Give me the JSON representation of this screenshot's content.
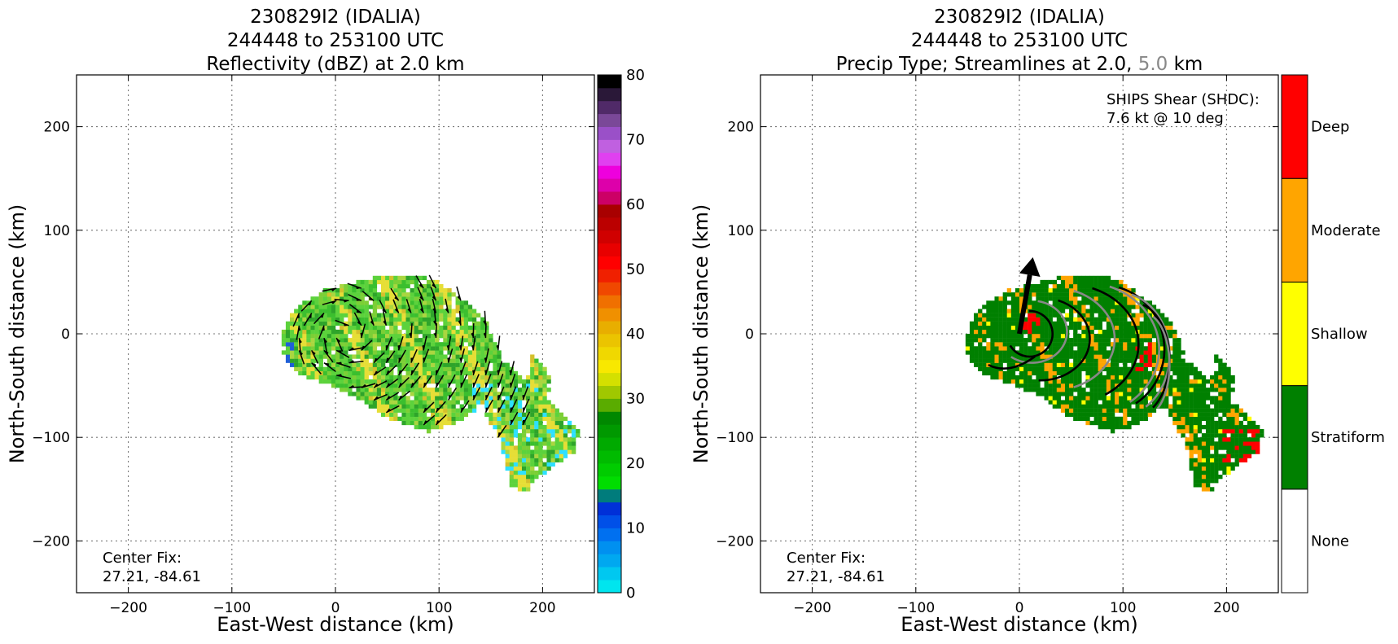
{
  "charts": [
    {
      "type": "heatmap",
      "title_lines": [
        "230829I2 (IDALIA)",
        "244448 to 253100 UTC",
        "Reflectivity (dBZ) at 2.0 km"
      ],
      "xlabel": "East-West distance (km)",
      "ylabel": "North-South distance (km)",
      "xlim": [
        -250,
        250
      ],
      "ylim": [
        -250,
        250
      ],
      "xticks": [
        "−200",
        "−100",
        "0",
        "100",
        "200"
      ],
      "yticks": [
        "−200",
        "−100",
        "0",
        "100",
        "200"
      ],
      "grid": true,
      "center_fix": {
        "label": "Center Fix:",
        "coords": "27.21, -84.61"
      },
      "colorbar": {
        "range": [
          0,
          80
        ],
        "tick_labels": [
          "0",
          "10",
          "20",
          "30",
          "40",
          "50",
          "60",
          "70",
          "80"
        ],
        "colors": [
          "#00e5ee",
          "#00c8f0",
          "#00a8f0",
          "#0090f0",
          "#0070f0",
          "#0050e8",
          "#0030d8",
          "#007c7c",
          "#00dd00",
          "#00cc00",
          "#00bb00",
          "#00aa00",
          "#009900",
          "#008800",
          "#5aac00",
          "#a0c800",
          "#d4e000",
          "#f8e800",
          "#f0d800",
          "#ebc400",
          "#e8ae00",
          "#f09000",
          "#f07000",
          "#f04800",
          "#f02000",
          "#ff0000",
          "#e80000",
          "#d00000",
          "#bb0000",
          "#a80000",
          "#cc0066",
          "#dd00aa",
          "#ee00dd",
          "#e040f0",
          "#c060e0",
          "#9a50c8",
          "#7a4898",
          "#502a68",
          "#2a1838",
          "#000000"
        ]
      },
      "echo_colors": [
        "#5cd23c",
        "#3bbf2e",
        "#7ccf36",
        "#2ea42a",
        "#a9d640",
        "#e6de36",
        "#d4c02c",
        "#1f5fd8",
        "#2ee0ff",
        "#7fc8ff"
      ]
    },
    {
      "type": "heatmap",
      "title_lines": [
        "230829I2 (IDALIA)",
        "244448 to 253100 UTC"
      ],
      "title3": {
        "pre": "Precip Type; Streamlines at 2.0, ",
        "grey": "5.0",
        "post": " km"
      },
      "xlabel": "East-West distance (km)",
      "ylabel": "North-South distance (km)",
      "xlim": [
        -250,
        250
      ],
      "ylim": [
        -250,
        250
      ],
      "xticks": [
        "−200",
        "−100",
        "0",
        "100",
        "200"
      ],
      "yticks": [
        "−200",
        "−100",
        "0",
        "100",
        "200"
      ],
      "grid": true,
      "shear": {
        "line1": "SHIPS Shear (SHDC):",
        "line2": "7.6 kt @ 10 deg",
        "speed_kt": 7.6,
        "direction_deg": 10
      },
      "center_fix": {
        "label": "Center Fix:",
        "coords": "27.21, -84.61"
      },
      "categories": [
        {
          "name": "None",
          "color": "#ffffff"
        },
        {
          "name": "Stratiform",
          "color": "#008000"
        },
        {
          "name": "Shallow",
          "color": "#ffff00"
        },
        {
          "name": "Moderate",
          "color": "#ffa500"
        },
        {
          "name": "Deep",
          "color": "#ff0000"
        }
      ]
    }
  ]
}
